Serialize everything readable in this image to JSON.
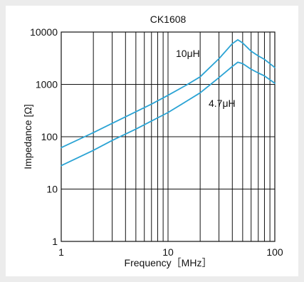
{
  "chart_data": {
    "type": "line",
    "title": "CK1608",
    "xlabel": "Frequency［MHz］",
    "ylabel": "Impedance [Ω]",
    "x_scale": "log",
    "y_scale": "log",
    "xlim": [
      1,
      100
    ],
    "ylim": [
      1,
      10000
    ],
    "grid": true,
    "x_ticks": [
      "1",
      "10",
      "100"
    ],
    "y_ticks": [
      "1",
      "10",
      "100",
      "1000",
      "10000"
    ],
    "line_color": "#2aa3d4",
    "series": [
      {
        "name": "10μH",
        "x": [
          1,
          2,
          3,
          5,
          7,
          10,
          15,
          20,
          30,
          40,
          45,
          50,
          60,
          70,
          80,
          100
        ],
        "y": [
          62,
          120,
          180,
          300,
          420,
          620,
          980,
          1400,
          3100,
          6000,
          7100,
          6200,
          4300,
          3500,
          3000,
          2100
        ]
      },
      {
        "name": "4.7μH",
        "x": [
          1,
          2,
          3,
          5,
          7,
          10,
          15,
          20,
          30,
          40,
          45,
          50,
          60,
          70,
          80,
          100
        ],
        "y": [
          28,
          55,
          85,
          140,
          200,
          290,
          480,
          690,
          1350,
          2200,
          2650,
          2500,
          1950,
          1650,
          1450,
          1050
        ]
      }
    ]
  }
}
